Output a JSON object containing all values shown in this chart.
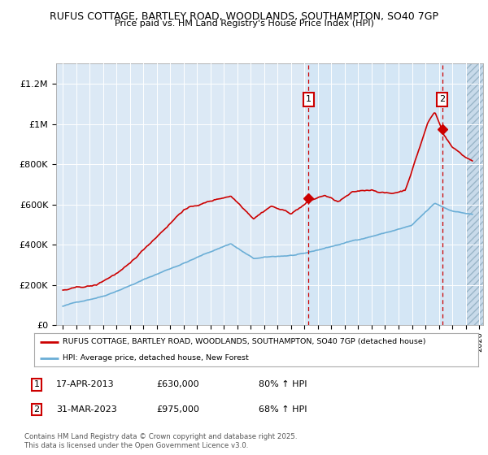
{
  "title_line1": "RUFUS COTTAGE, BARTLEY ROAD, WOODLANDS, SOUTHAMPTON, SO40 7GP",
  "title_line2": "Price paid vs. HM Land Registry's House Price Index (HPI)",
  "legend_label1": "RUFUS COTTAGE, BARTLEY ROAD, WOODLANDS, SOUTHAMPTON, SO40 7GP (detached house)",
  "legend_label2": "HPI: Average price, detached house, New Forest",
  "ann1_date": "17-APR-2013",
  "ann1_price": "£630,000",
  "ann1_pct": "80% ↑ HPI",
  "ann2_date": "31-MAR-2023",
  "ann2_price": "£975,000",
  "ann2_pct": "68% ↑ HPI",
  "footnote": "Contains HM Land Registry data © Crown copyright and database right 2025.\nThis data is licensed under the Open Government Licence v3.0.",
  "hpi_color": "#6baed6",
  "price_color": "#cc0000",
  "bg_plot": "#dce9f5",
  "shade_color": "#d0e4f5",
  "ylim": [
    0,
    1300000
  ],
  "yticks": [
    0,
    200000,
    400000,
    600000,
    800000,
    1000000,
    1200000
  ],
  "ytick_labels": [
    "£0",
    "£200K",
    "£400K",
    "£600K",
    "£800K",
    "£1M",
    "£1.2M"
  ],
  "vline1_x": 2013.29,
  "vline2_x": 2023.25,
  "marker1_x": 2013.29,
  "marker1_y": 630000,
  "marker2_x": 2023.25,
  "marker2_y": 975000,
  "xmin": 1994.5,
  "xmax": 2026.3,
  "hatch_start": 2025.0
}
